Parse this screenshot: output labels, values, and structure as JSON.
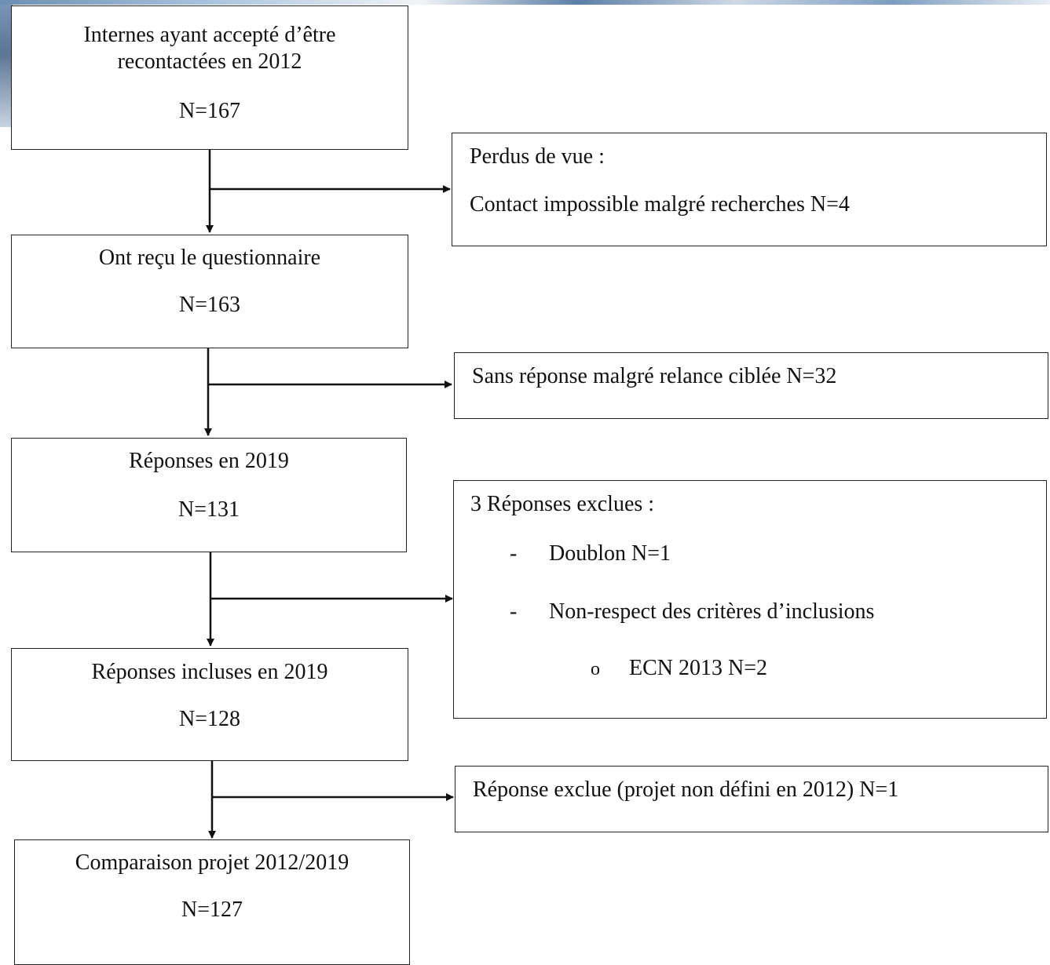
{
  "main_flow": [
    {
      "line1": "Internes ayant accepté d’être",
      "line2": "recontactées en 2012",
      "count": "N=167"
    },
    {
      "line1": "Ont reçu le questionnaire",
      "count": "N=163"
    },
    {
      "line1": "Réponses en 2019",
      "count": "N=131"
    },
    {
      "line1": "Réponses incluses en 2019",
      "count": "N=128"
    },
    {
      "line1": "Comparaison projet 2012/2019",
      "count": "N=127"
    }
  ],
  "exclusions": {
    "lost": {
      "title": "Perdus de vue :",
      "detail": "Contact impossible malgré recherches N=4"
    },
    "no_response": {
      "text": "Sans réponse malgré relance ciblée N=32"
    },
    "excluded_responses": {
      "title": "3 Réponses exclues :",
      "dash": "-",
      "circle": "o",
      "item1": "Doublon N=1",
      "item2": "Non-respect des critères d’inclusions",
      "subitem": "ECN 2013 N=2"
    },
    "excluded_project": {
      "text": "Réponse exclue (projet non défini en 2012) N=1"
    }
  }
}
